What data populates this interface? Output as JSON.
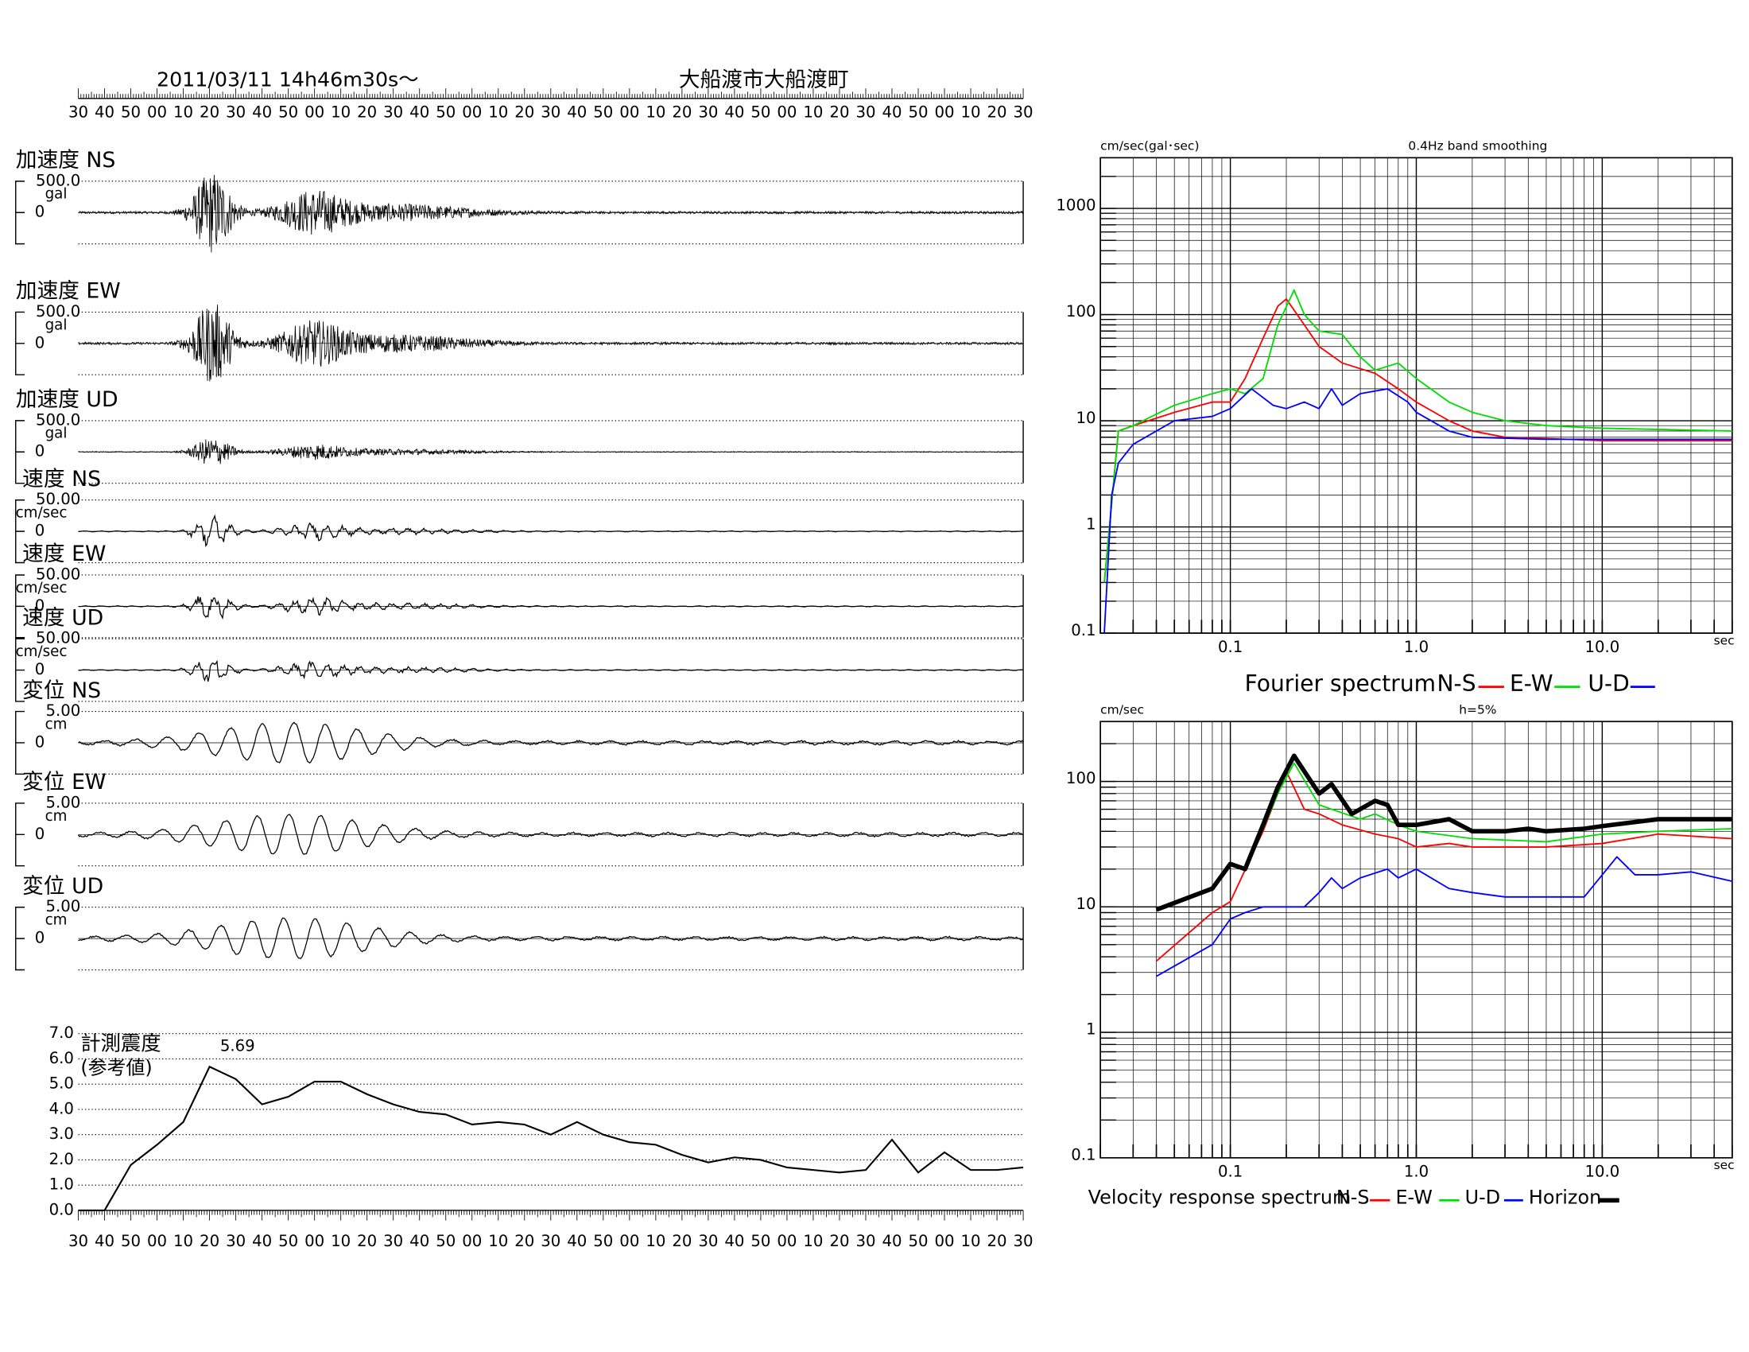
{
  "header": {
    "datetime": "2011/03/11  14h46m30s～",
    "station": "大船渡市大船渡町"
  },
  "traces": [
    {
      "label": "加速度 NS",
      "scale": "500.0",
      "unit": "gal",
      "zero": "0"
    },
    {
      "label": "加速度 EW",
      "scale": "500.0",
      "unit": "gal",
      "zero": "0"
    },
    {
      "label": "加速度 UD",
      "scale": "500.0",
      "unit": "gal",
      "zero": "0"
    },
    {
      "label": "速度 NS",
      "scale": "50.00",
      "unit": "cm/sec",
      "zero": "0"
    },
    {
      "label": "速度 EW",
      "scale": "50.00",
      "unit": "cm/sec",
      "zero": "0"
    },
    {
      "label": "速度 UD",
      "scale": "50.00",
      "unit": "cm/sec",
      "zero": "0"
    },
    {
      "label": "変位 NS",
      "scale": "5.00",
      "unit": "cm",
      "zero": "0"
    },
    {
      "label": "変位 EW",
      "scale": "5.00",
      "unit": "cm",
      "zero": "0"
    },
    {
      "label": "変位 UD",
      "scale": "5.00",
      "unit": "cm",
      "zero": "0"
    }
  ],
  "chart_data": [
    {
      "type": "line",
      "title": "計測震度",
      "subtitle": "(参考値)",
      "categories": [
        "30",
        "40",
        "50",
        "00",
        "10",
        "20",
        "30",
        "40",
        "50",
        "00",
        "10",
        "20",
        "30",
        "40",
        "50",
        "00",
        "10",
        "20",
        "30",
        "40",
        "50",
        "00",
        "10",
        "20",
        "30",
        "40",
        "50",
        "00",
        "10",
        "20",
        "30",
        "40",
        "50",
        "00",
        "10",
        "20",
        "30"
      ],
      "values": [
        0,
        0,
        1.8,
        2.6,
        3.5,
        5.69,
        5.2,
        4.2,
        4.5,
        5.1,
        5.1,
        4.6,
        4.2,
        3.9,
        3.8,
        3.4,
        3.5,
        3.4,
        3.0,
        3.5,
        3.0,
        2.7,
        2.6,
        2.2,
        1.9,
        2.1,
        2.0,
        1.7,
        1.6,
        1.5,
        1.6,
        2.8,
        1.5,
        2.3,
        1.6,
        1.6,
        1.7
      ],
      "color": "#000000",
      "peak_label": 5.69,
      "ylim": [
        0,
        7
      ],
      "yticks": [
        {
          "value": 0,
          "label": "0.0"
        },
        {
          "value": 1,
          "label": "1.0"
        },
        {
          "value": 2,
          "label": "2.0"
        },
        {
          "value": 3,
          "label": "3.0"
        },
        {
          "value": 4,
          "label": "4.0"
        },
        {
          "value": 5,
          "label": "5.0"
        },
        {
          "value": 6,
          "label": "6.0"
        },
        {
          "value": 7,
          "label": "7.0"
        }
      ],
      "grid": true
    },
    {
      "type": "logline",
      "title": "Fourier spectrum",
      "subtitle": "0.4Hz band smoothing",
      "y_label": "cm/sec(gal･sec)",
      "x_label": "sec",
      "log_x": true,
      "log_y": true,
      "grid": true,
      "xlim": [
        0.02,
        50
      ],
      "ylim": [
        0.1,
        3000
      ],
      "xticks": [
        0.1,
        {
          "value": 1,
          "label": "1.0"
        },
        {
          "value": 10,
          "label": "10.0"
        }
      ],
      "yticks": [
        0.1,
        1,
        10,
        100,
        1000
      ],
      "series": [
        {
          "name": "N-S",
          "color": "#ff0000",
          "width": 1.3,
          "x": [
            0.021,
            0.025,
            0.03,
            0.05,
            0.08,
            0.1,
            0.12,
            0.15,
            0.18,
            0.2,
            0.25,
            0.3,
            0.4,
            0.6,
            0.8,
            1.0,
            1.5,
            2,
            3,
            5,
            10,
            50
          ],
          "values": [
            0.3,
            8,
            9,
            12,
            15,
            15,
            25,
            60,
            120,
            140,
            80,
            50,
            35,
            28,
            20,
            15,
            10,
            8,
            7,
            6.8,
            6.5,
            6.5
          ]
        },
        {
          "name": "E-W",
          "color": "#00dd00",
          "width": 1.3,
          "x": [
            0.021,
            0.025,
            0.03,
            0.05,
            0.08,
            0.1,
            0.12,
            0.15,
            0.18,
            0.22,
            0.25,
            0.3,
            0.4,
            0.5,
            0.6,
            0.8,
            1.0,
            1.5,
            2,
            3,
            5,
            10,
            50
          ],
          "values": [
            0.3,
            8,
            9,
            14,
            18,
            20,
            18,
            25,
            80,
            170,
            100,
            70,
            65,
            40,
            30,
            35,
            25,
            15,
            12,
            10,
            9,
            8.5,
            8
          ]
        },
        {
          "name": "U-D",
          "color": "#0000ff",
          "width": 1.3,
          "x": [
            0.021,
            0.023,
            0.025,
            0.03,
            0.05,
            0.08,
            0.1,
            0.13,
            0.17,
            0.2,
            0.25,
            0.3,
            0.35,
            0.4,
            0.5,
            0.7,
            0.9,
            1.0,
            1.5,
            2,
            5,
            50
          ],
          "values": [
            0.1,
            2,
            4,
            6,
            10,
            11,
            13,
            20,
            14,
            13,
            15,
            13,
            20,
            14,
            18,
            20,
            15,
            12,
            8,
            7,
            6.7,
            6.7
          ]
        }
      ]
    },
    {
      "type": "logline",
      "title": "Velocity response spectrum",
      "subtitle": "h=5%",
      "y_label": "cm/sec",
      "x_label": "sec",
      "log_x": true,
      "log_y": true,
      "grid": true,
      "xlim": [
        0.02,
        50
      ],
      "ylim": [
        0.1,
        300
      ],
      "xticks": [
        0.1,
        {
          "value": 1,
          "label": "1.0"
        },
        {
          "value": 10,
          "label": "10.0"
        }
      ],
      "yticks": [
        0.1,
        1,
        10,
        100
      ],
      "series": [
        {
          "name": "N-S",
          "color": "#ff0000",
          "width": 1.3,
          "x": [
            0.04,
            0.08,
            0.1,
            0.15,
            0.2,
            0.25,
            0.3,
            0.4,
            0.6,
            0.8,
            1,
            1.5,
            2,
            3,
            5,
            10,
            20,
            50
          ],
          "values": [
            3.7,
            9,
            11,
            40,
            120,
            60,
            55,
            45,
            38,
            35,
            30,
            32,
            30,
            30,
            30,
            32,
            38,
            35
          ]
        },
        {
          "name": "E-W",
          "color": "#00dd00",
          "width": 1.3,
          "x": [
            0.13,
            0.18,
            0.22,
            0.3,
            0.5,
            0.6,
            0.8,
            1,
            2,
            5,
            10,
            20,
            50
          ],
          "values": [
            25,
            80,
            140,
            65,
            50,
            55,
            45,
            40,
            35,
            33,
            38,
            40,
            42
          ]
        },
        {
          "name": "U-D",
          "color": "#0000ff",
          "width": 1.3,
          "x": [
            0.04,
            0.08,
            0.1,
            0.12,
            0.15,
            0.2,
            0.25,
            0.3,
            0.35,
            0.4,
            0.5,
            0.7,
            0.8,
            1,
            1.5,
            2,
            3,
            5,
            8,
            12,
            15,
            20,
            30,
            50
          ],
          "values": [
            2.8,
            5,
            8,
            9,
            10,
            10,
            10,
            13,
            17,
            14,
            17,
            20,
            17,
            20,
            14,
            13,
            12,
            12,
            12,
            25,
            18,
            18,
            19,
            16
          ]
        },
        {
          "name": "Horizon",
          "color": "#000000",
          "width": 4,
          "x": [
            0.04,
            0.08,
            0.1,
            0.12,
            0.15,
            0.18,
            0.22,
            0.25,
            0.3,
            0.35,
            0.45,
            0.6,
            0.7,
            0.8,
            1.0,
            1.5,
            2,
            3,
            4,
            5,
            8,
            10,
            20,
            50
          ],
          "values": [
            9.5,
            14,
            22,
            20,
            45,
            90,
            160,
            120,
            80,
            95,
            55,
            70,
            65,
            45,
            45,
            50,
            40,
            40,
            42,
            40,
            42,
            44,
            50,
            50
          ]
        }
      ]
    }
  ]
}
